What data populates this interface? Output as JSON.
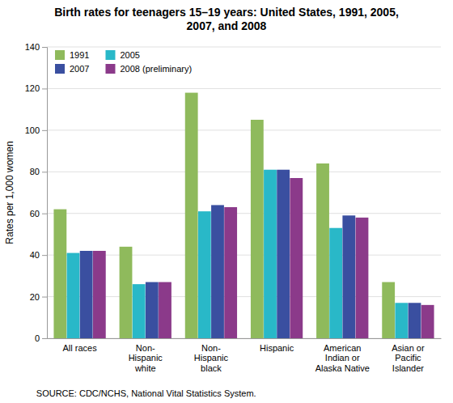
{
  "chart_data": {
    "type": "bar",
    "title": "Birth rates for teenagers 15–19 years: United States, 1991, 2005,\n2007, and 2008",
    "ylabel": "Rates per 1,000 women",
    "annotations": [
      "SOURCE: CDC/NCHS, National Vital Statistics System."
    ],
    "categories": [
      "All races",
      "Non-\nHispanic\nwhite",
      "Non-\nHispanic\nblack",
      "Hispanic",
      "American\nIndian or\nAlaska Native",
      "Asian or\nPacific\nIslander"
    ],
    "series": [
      {
        "name": "1991",
        "color": "#8fba5c",
        "values": [
          62,
          44,
          118,
          105,
          84,
          27
        ]
      },
      {
        "name": "2005",
        "color": "#29b8c8",
        "values": [
          41,
          26,
          61,
          81,
          53,
          17
        ]
      },
      {
        "name": "2007",
        "color": "#3a4fa0",
        "values": [
          42,
          27,
          64,
          81,
          59,
          17
        ]
      },
      {
        "name": "2008 (preliminary)",
        "color": "#8b3a8a",
        "values": [
          42,
          27,
          63,
          77,
          58,
          16
        ]
      }
    ],
    "ylim": [
      0,
      140
    ],
    "yticks": [
      0,
      20,
      40,
      60,
      80,
      100,
      120,
      140
    ],
    "grid": true,
    "legend": "upper left"
  }
}
